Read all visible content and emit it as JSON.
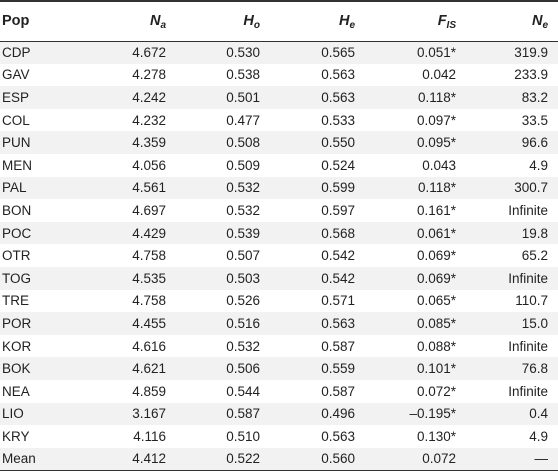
{
  "table": {
    "headers": {
      "pop": "Pop",
      "na": {
        "base": "N",
        "sub": "a"
      },
      "ho": {
        "base": "H",
        "sub": "o"
      },
      "he": {
        "base": "H",
        "sub": "e"
      },
      "fis": {
        "base": "F",
        "sub": "IS"
      },
      "ne": {
        "base": "N",
        "sub": "e"
      }
    },
    "rows": [
      {
        "pop": "CDP",
        "na": "4.672",
        "ho": "0.530",
        "he": "0.565",
        "fis": "0.051*",
        "ne": "319.9"
      },
      {
        "pop": "GAV",
        "na": "4.278",
        "ho": "0.538",
        "he": "0.563",
        "fis": "0.042",
        "ne": "233.9"
      },
      {
        "pop": "ESP",
        "na": "4.242",
        "ho": "0.501",
        "he": "0.563",
        "fis": "0.118*",
        "ne": "83.2"
      },
      {
        "pop": "COL",
        "na": "4.232",
        "ho": "0.477",
        "he": "0.533",
        "fis": "0.097*",
        "ne": "33.5"
      },
      {
        "pop": "PUN",
        "na": "4.359",
        "ho": "0.508",
        "he": "0.550",
        "fis": "0.095*",
        "ne": "96.6"
      },
      {
        "pop": "MEN",
        "na": "4.056",
        "ho": "0.509",
        "he": "0.524",
        "fis": "0.043",
        "ne": "4.9"
      },
      {
        "pop": "PAL",
        "na": "4.561",
        "ho": "0.532",
        "he": "0.599",
        "fis": "0.118*",
        "ne": "300.7"
      },
      {
        "pop": "BON",
        "na": "4.697",
        "ho": "0.532",
        "he": "0.597",
        "fis": "0.161*",
        "ne": "Infinite"
      },
      {
        "pop": "POC",
        "na": "4.429",
        "ho": "0.539",
        "he": "0.568",
        "fis": "0.061*",
        "ne": "19.8"
      },
      {
        "pop": "OTR",
        "na": "4.758",
        "ho": "0.507",
        "he": "0.542",
        "fis": "0.069*",
        "ne": "65.2"
      },
      {
        "pop": "TOG",
        "na": "4.535",
        "ho": "0.503",
        "he": "0.542",
        "fis": "0.069*",
        "ne": "Infinite"
      },
      {
        "pop": "TRE",
        "na": "4.758",
        "ho": "0.526",
        "he": "0.571",
        "fis": "0.065*",
        "ne": "110.7"
      },
      {
        "pop": "POR",
        "na": "4.455",
        "ho": "0.516",
        "he": "0.563",
        "fis": "0.085*",
        "ne": "15.0"
      },
      {
        "pop": "KOR",
        "na": "4.616",
        "ho": "0.532",
        "he": "0.587",
        "fis": "0.088*",
        "ne": "Infinite"
      },
      {
        "pop": "BOK",
        "na": "4.621",
        "ho": "0.506",
        "he": "0.559",
        "fis": "0.101*",
        "ne": "76.8"
      },
      {
        "pop": "NEA",
        "na": "4.859",
        "ho": "0.544",
        "he": "0.587",
        "fis": "0.072*",
        "ne": "Infinite"
      },
      {
        "pop": "LIO",
        "na": "3.167",
        "ho": "0.587",
        "he": "0.496",
        "fis": "–0.195*",
        "ne": "0.4"
      },
      {
        "pop": "KRY",
        "na": "4.116",
        "ho": "0.510",
        "he": "0.563",
        "fis": "0.130*",
        "ne": "4.9"
      },
      {
        "pop": "Mean",
        "na": "4.412",
        "ho": "0.522",
        "he": "0.560",
        "fis": "0.072",
        "ne": "—"
      }
    ]
  }
}
